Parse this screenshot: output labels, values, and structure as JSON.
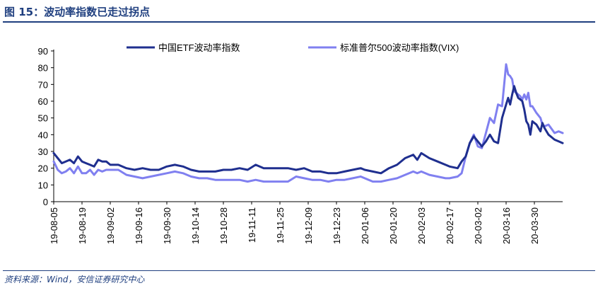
{
  "figure": {
    "title": "图 15：波动率指数已走过拐点",
    "source": "资料来源：Wind，安信证券研究中心"
  },
  "chart_data": {
    "type": "line",
    "title": "",
    "xlabel": "",
    "ylabel": "",
    "ylim": [
      0,
      90
    ],
    "yticks": [
      0,
      10,
      20,
      30,
      40,
      50,
      60,
      70,
      80,
      90
    ],
    "grid": false,
    "legend_position": "top",
    "xtick_labels": [
      "19-08-05",
      "19-08-19",
      "19-09-02",
      "19-09-16",
      "19-09-30",
      "19-10-14",
      "19-10-28",
      "19-11-11",
      "19-11-25",
      "19-12-09",
      "19-12-23",
      "20-01-06",
      "20-01-20",
      "20-02-03",
      "20-02-17",
      "20-03-02",
      "20-03-16",
      "20-03-30"
    ],
    "series": [
      {
        "name": "中国ETF波动率指数",
        "color": "#1f2f8f",
        "points": [
          [
            "19-08-05",
            29
          ],
          [
            "19-08-07",
            26
          ],
          [
            "19-08-09",
            23
          ],
          [
            "19-08-11",
            24
          ],
          [
            "19-08-13",
            25
          ],
          [
            "19-08-15",
            23
          ],
          [
            "19-08-17",
            27
          ],
          [
            "19-08-19",
            24
          ],
          [
            "19-08-21",
            23
          ],
          [
            "19-08-23",
            22
          ],
          [
            "19-08-25",
            21
          ],
          [
            "19-08-27",
            25
          ],
          [
            "19-08-29",
            24
          ],
          [
            "19-08-31",
            24
          ],
          [
            "19-09-02",
            22
          ],
          [
            "19-09-06",
            22
          ],
          [
            "19-09-10",
            20
          ],
          [
            "19-09-14",
            19
          ],
          [
            "19-09-18",
            20
          ],
          [
            "19-09-22",
            19
          ],
          [
            "19-09-26",
            19
          ],
          [
            "19-09-30",
            21
          ],
          [
            "19-10-04",
            22
          ],
          [
            "19-10-08",
            21
          ],
          [
            "19-10-12",
            19
          ],
          [
            "19-10-16",
            18
          ],
          [
            "19-10-20",
            18
          ],
          [
            "19-10-24",
            18
          ],
          [
            "19-10-28",
            19
          ],
          [
            "19-11-01",
            19
          ],
          [
            "19-11-05",
            20
          ],
          [
            "19-11-09",
            19
          ],
          [
            "19-11-13",
            22
          ],
          [
            "19-11-17",
            20
          ],
          [
            "19-11-21",
            20
          ],
          [
            "19-11-25",
            20
          ],
          [
            "19-11-29",
            20
          ],
          [
            "19-12-03",
            19
          ],
          [
            "19-12-07",
            20
          ],
          [
            "19-12-11",
            18
          ],
          [
            "19-12-15",
            18
          ],
          [
            "19-12-19",
            17
          ],
          [
            "19-12-23",
            17
          ],
          [
            "19-12-27",
            18
          ],
          [
            "19-12-31",
            19
          ],
          [
            "20-01-04",
            20
          ],
          [
            "20-01-06",
            19
          ],
          [
            "20-01-10",
            18
          ],
          [
            "20-01-14",
            17
          ],
          [
            "20-01-18",
            20
          ],
          [
            "20-01-22",
            22
          ],
          [
            "20-01-26",
            26
          ],
          [
            "20-01-30",
            28
          ],
          [
            "20-02-01",
            25
          ],
          [
            "20-02-03",
            29
          ],
          [
            "20-02-07",
            26
          ],
          [
            "20-02-11",
            24
          ],
          [
            "20-02-15",
            22
          ],
          [
            "20-02-17",
            21
          ],
          [
            "20-02-21",
            20
          ],
          [
            "20-02-23",
            24
          ],
          [
            "20-02-25",
            27
          ],
          [
            "20-02-27",
            35
          ],
          [
            "20-02-29",
            39
          ],
          [
            "20-03-02",
            36
          ],
          [
            "20-03-04",
            33
          ],
          [
            "20-03-06",
            36
          ],
          [
            "20-03-08",
            40
          ],
          [
            "20-03-10",
            36
          ],
          [
            "20-03-12",
            35
          ],
          [
            "20-03-14",
            50
          ],
          [
            "20-03-16",
            58
          ],
          [
            "20-03-17",
            62
          ],
          [
            "20-03-18",
            58
          ],
          [
            "20-03-19",
            64
          ],
          [
            "20-03-20",
            69
          ],
          [
            "20-03-21",
            65
          ],
          [
            "20-03-22",
            62
          ],
          [
            "20-03-23",
            61
          ],
          [
            "20-03-24",
            60
          ],
          [
            "20-03-25",
            55
          ],
          [
            "20-03-26",
            48
          ],
          [
            "20-03-27",
            46
          ],
          [
            "20-03-28",
            40
          ],
          [
            "20-03-29",
            48
          ],
          [
            "20-03-31",
            46
          ],
          [
            "20-04-02",
            42
          ],
          [
            "20-04-03",
            47
          ],
          [
            "20-04-04",
            44
          ],
          [
            "20-04-06",
            40
          ],
          [
            "20-04-09",
            37
          ],
          [
            "20-04-11",
            36
          ],
          [
            "20-04-13",
            35
          ]
        ]
      },
      {
        "name": "标准普尔500波动率指数(VIX)",
        "color": "#8080f0",
        "points": [
          [
            "19-08-05",
            24
          ],
          [
            "19-08-07",
            19
          ],
          [
            "19-08-09",
            17
          ],
          [
            "19-08-11",
            18
          ],
          [
            "19-08-13",
            20
          ],
          [
            "19-08-15",
            17
          ],
          [
            "19-08-17",
            21
          ],
          [
            "19-08-19",
            17
          ],
          [
            "19-08-21",
            17
          ],
          [
            "19-08-23",
            19
          ],
          [
            "19-08-25",
            16
          ],
          [
            "19-08-27",
            19
          ],
          [
            "19-08-29",
            18
          ],
          [
            "19-08-31",
            19
          ],
          [
            "19-09-02",
            19
          ],
          [
            "19-09-06",
            19
          ],
          [
            "19-09-10",
            16
          ],
          [
            "19-09-14",
            15
          ],
          [
            "19-09-18",
            14
          ],
          [
            "19-09-22",
            15
          ],
          [
            "19-09-26",
            16
          ],
          [
            "19-09-30",
            17
          ],
          [
            "19-10-04",
            18
          ],
          [
            "19-10-08",
            17
          ],
          [
            "19-10-12",
            15
          ],
          [
            "19-10-16",
            14
          ],
          [
            "19-10-20",
            14
          ],
          [
            "19-10-24",
            13
          ],
          [
            "19-10-28",
            13
          ],
          [
            "19-11-01",
            13
          ],
          [
            "19-11-05",
            13
          ],
          [
            "19-11-09",
            12
          ],
          [
            "19-11-13",
            13
          ],
          [
            "19-11-17",
            12
          ],
          [
            "19-11-21",
            12
          ],
          [
            "19-11-25",
            12
          ],
          [
            "19-11-29",
            12
          ],
          [
            "19-12-03",
            15
          ],
          [
            "19-12-07",
            14
          ],
          [
            "19-12-11",
            13
          ],
          [
            "19-12-15",
            13
          ],
          [
            "19-12-19",
            12
          ],
          [
            "19-12-23",
            13
          ],
          [
            "19-12-27",
            13
          ],
          [
            "19-12-31",
            14
          ],
          [
            "20-01-04",
            15
          ],
          [
            "20-01-06",
            14
          ],
          [
            "20-01-10",
            12
          ],
          [
            "20-01-14",
            12
          ],
          [
            "20-01-18",
            13
          ],
          [
            "20-01-22",
            14
          ],
          [
            "20-01-26",
            16
          ],
          [
            "20-01-30",
            18
          ],
          [
            "20-02-01",
            17
          ],
          [
            "20-02-03",
            18
          ],
          [
            "20-02-07",
            16
          ],
          [
            "20-02-11",
            15
          ],
          [
            "20-02-15",
            14
          ],
          [
            "20-02-17",
            14
          ],
          [
            "20-02-21",
            15
          ],
          [
            "20-02-23",
            17
          ],
          [
            "20-02-25",
            27
          ],
          [
            "20-02-27",
            35
          ],
          [
            "20-02-29",
            40
          ],
          [
            "20-03-02",
            33
          ],
          [
            "20-03-04",
            32
          ],
          [
            "20-03-06",
            41
          ],
          [
            "20-03-08",
            50
          ],
          [
            "20-03-10",
            47
          ],
          [
            "20-03-12",
            58
          ],
          [
            "20-03-14",
            57
          ],
          [
            "20-03-16",
            82
          ],
          [
            "20-03-17",
            76
          ],
          [
            "20-03-18",
            75
          ],
          [
            "20-03-19",
            73
          ],
          [
            "20-03-20",
            66
          ],
          [
            "20-03-21",
            65
          ],
          [
            "20-03-22",
            64
          ],
          [
            "20-03-23",
            63
          ],
          [
            "20-03-24",
            61
          ],
          [
            "20-03-25",
            64
          ],
          [
            "20-03-26",
            61
          ],
          [
            "20-03-27",
            65
          ],
          [
            "20-03-28",
            57
          ],
          [
            "20-03-29",
            57
          ],
          [
            "20-03-31",
            53
          ],
          [
            "20-04-02",
            50
          ],
          [
            "20-04-03",
            46
          ],
          [
            "20-04-04",
            45
          ],
          [
            "20-04-06",
            46
          ],
          [
            "20-04-09",
            41
          ],
          [
            "20-04-11",
            42
          ],
          [
            "20-04-13",
            41
          ]
        ]
      }
    ]
  }
}
